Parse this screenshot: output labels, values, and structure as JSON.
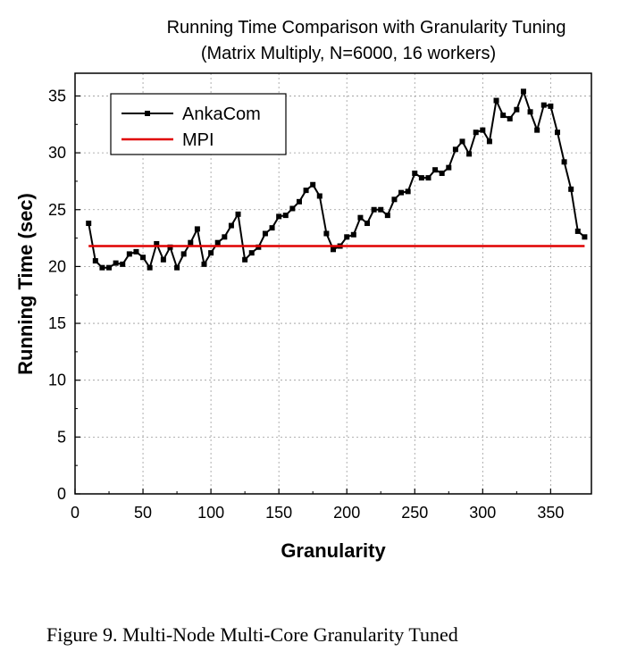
{
  "chart_data": {
    "type": "line",
    "title": "Running Time Comparison with Granularity Tuning",
    "subtitle": "(Matrix Multiply, N=6000, 16 workers)",
    "xlabel": "Granularity",
    "ylabel": "Running Time (sec)",
    "xlim": [
      0,
      380
    ],
    "ylim": [
      0,
      37
    ],
    "xticks": [
      0,
      50,
      100,
      150,
      200,
      250,
      300,
      350
    ],
    "yticks": [
      0,
      5,
      10,
      15,
      20,
      25,
      30,
      35
    ],
    "grid": true,
    "legend_position": "top-left",
    "series": [
      {
        "name": "AnkaCom",
        "color": "#000000",
        "marker": "square",
        "x": [
          10,
          15,
          20,
          25,
          30,
          35,
          40,
          45,
          50,
          55,
          60,
          65,
          70,
          75,
          80,
          85,
          90,
          95,
          100,
          105,
          110,
          115,
          120,
          125,
          130,
          135,
          140,
          145,
          150,
          155,
          160,
          165,
          170,
          175,
          180,
          185,
          190,
          195,
          200,
          205,
          210,
          215,
          220,
          225,
          230,
          235,
          240,
          245,
          250,
          255,
          260,
          265,
          270,
          275,
          280,
          285,
          290,
          295,
          300,
          305,
          310,
          315,
          320,
          325,
          330,
          335,
          340,
          345,
          350,
          355,
          360,
          365,
          370,
          375
        ],
        "y": [
          23.8,
          20.5,
          19.9,
          19.9,
          20.3,
          20.2,
          21.1,
          21.3,
          20.8,
          19.9,
          22.0,
          20.6,
          21.7,
          19.9,
          21.1,
          22.1,
          23.3,
          20.2,
          21.2,
          22.1,
          22.6,
          23.6,
          24.6,
          20.6,
          21.2,
          21.7,
          22.9,
          23.4,
          24.4,
          24.5,
          25.1,
          25.7,
          26.7,
          27.2,
          26.2,
          22.9,
          21.5,
          21.8,
          22.6,
          22.8,
          24.3,
          23.8,
          25.0,
          25.0,
          24.5,
          25.9,
          26.5,
          26.6,
          28.2,
          27.8,
          27.8,
          28.5,
          28.2,
          28.7,
          30.3,
          31.0,
          29.9,
          31.8,
          32.0,
          31.0,
          34.6,
          33.3,
          33.0,
          33.8,
          35.4,
          33.6,
          32.0,
          34.2,
          34.1,
          31.8,
          29.2,
          26.8,
          23.1,
          22.6
        ]
      },
      {
        "name": "MPI",
        "color": "#e00000",
        "marker": "none",
        "x": [
          10,
          375
        ],
        "y": [
          21.8,
          21.8
        ]
      }
    ]
  },
  "caption": "Figure 9.   Multi-Node Multi-Core Granularity Tuned"
}
